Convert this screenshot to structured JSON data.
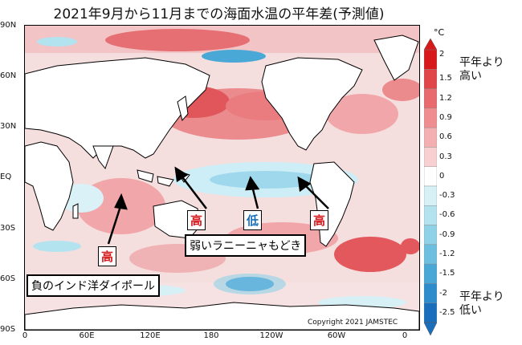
{
  "title": "2021年9月から11月までの海面水温の平年差(予測値)",
  "lat_labels": [
    "90N",
    "60N",
    "30N",
    "EQ",
    "30S",
    "60S",
    "90S"
  ],
  "lon_labels": [
    "0",
    "60E",
    "120E",
    "180",
    "120W",
    "60W",
    "0"
  ],
  "annotations": {
    "iod": "負のインド洋ダイポール",
    "la_nina": "弱いラニーニャもどき",
    "high": "高",
    "low": "低"
  },
  "colorbar": {
    "unit": "°C",
    "levels": [
      "2",
      "1.5",
      "1.2",
      "0.9",
      "0.6",
      "0.3",
      "0",
      "-0.3",
      "-0.6",
      "-0.9",
      "-1.2",
      "-1.5",
      "-2",
      "-2.5"
    ],
    "colors": [
      "#d7191c",
      "#e0454a",
      "#e86a6e",
      "#ef8d90",
      "#f4afb1",
      "#f9d0d2",
      "#ffffff",
      "#d6f0f6",
      "#b4e3f0",
      "#8fd2e8",
      "#6dbfe0",
      "#4aa8d6",
      "#2d8dcc",
      "#1a6fbd"
    ],
    "high_label": "平年より\n高い",
    "low_label": "平年より\n低い"
  },
  "copyright": "Copyright 2021 JAMSTEC"
}
